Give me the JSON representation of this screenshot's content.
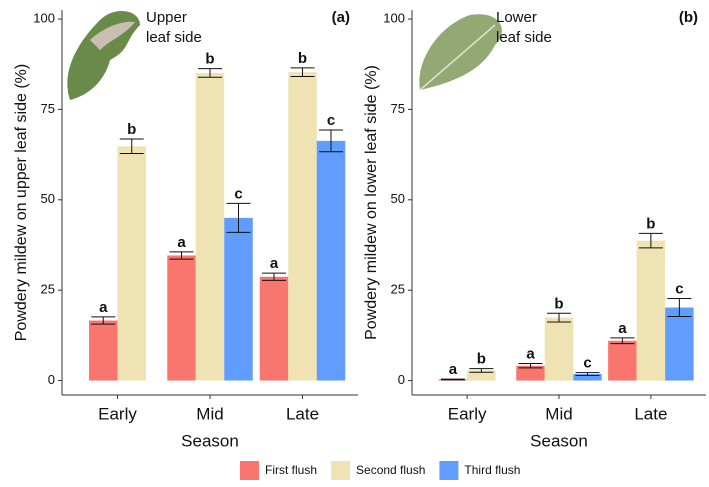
{
  "chart_data": [
    {
      "type": "bar",
      "panel_label": "(a)",
      "annotation_lines": [
        "Upper",
        "leaf side"
      ],
      "x_label": "Season",
      "y_label": "Powdery mildew on upper leaf side (%)",
      "categories": [
        "Early",
        "Mid",
        "Late"
      ],
      "ylim": [
        -4,
        102.5
      ],
      "yticks": [
        0,
        25,
        50,
        75,
        100
      ],
      "series": [
        {
          "name": "First flush",
          "color": "#f8766d",
          "values": [
            16.6,
            34.6,
            28.7
          ],
          "errors": [
            1,
            1,
            1
          ],
          "letters": [
            "a",
            "a",
            "a"
          ]
        },
        {
          "name": "Second flush",
          "color": "#efe3b3",
          "values": [
            64.8,
            85.1,
            85.3
          ],
          "errors": [
            2,
            1.2,
            1.2
          ],
          "letters": [
            "b",
            "b",
            "b"
          ]
        },
        {
          "name": "Third flush",
          "color": "#619cff",
          "values": [
            null,
            45,
            66.3
          ],
          "errors": [
            null,
            4,
            3
          ],
          "letters": [
            null,
            "c",
            "c"
          ]
        }
      ]
    },
    {
      "type": "bar",
      "panel_label": "(b)",
      "annotation_lines": [
        "Lower",
        "leaf side"
      ],
      "x_label": "Season",
      "y_label": "Powdery mildew on lower leaf side (%)",
      "categories": [
        "Early",
        "Mid",
        "Late"
      ],
      "ylim": [
        -4,
        102.5
      ],
      "yticks": [
        0,
        25,
        50,
        75,
        100
      ],
      "series": [
        {
          "name": "First flush",
          "color": "#f8766d",
          "values": [
            0.3,
            4.1,
            11
          ],
          "errors": [
            0.1,
            0.6,
            0.8
          ],
          "letters": [
            "a",
            "a",
            "a"
          ]
        },
        {
          "name": "Second flush",
          "color": "#efe3b3",
          "values": [
            2.8,
            17.4,
            38.7
          ],
          "errors": [
            0.5,
            1.2,
            2
          ],
          "letters": [
            "b",
            "b",
            "b"
          ]
        },
        {
          "name": "Third flush",
          "color": "#619cff",
          "values": [
            null,
            1.8,
            20.2
          ],
          "errors": [
            null,
            0.4,
            2.5
          ],
          "letters": [
            null,
            "c",
            "c"
          ]
        }
      ]
    }
  ]
}
